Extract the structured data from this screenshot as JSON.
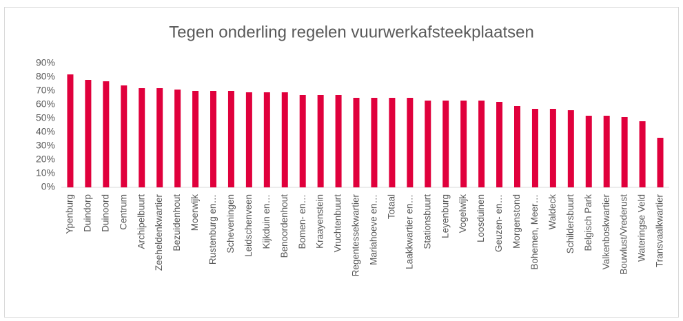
{
  "chart_data": {
    "type": "bar",
    "title": "Tegen onderling regelen vuurwerkafsteekplaatsen",
    "categories": [
      "Ypenburg",
      "Duindorp",
      "Duinoord",
      "Centrum",
      "Archipelbuurt",
      "Zeeheldenkwartier",
      "Bezuidenhout",
      "Moerwijk",
      "Rustenburg en…",
      "Scheveningen",
      "Leidschenveen",
      "Kijkduin en…",
      "Benoordenhout",
      "Bomen- en…",
      "Kraayenstein",
      "Vruchtenbuurt",
      "Regentessekwartier",
      "Mariahoeve en…",
      "Totaal",
      "Laakkwartier en…",
      "Stationsbuurt",
      "Leyenburg",
      "Vogelwijk",
      "Loosduinen",
      "Geuzen- en…",
      "Morgenstond",
      "Bohemen, Meer…",
      "Waldeck",
      "Schildersbuurt",
      "Belgisch Park",
      "Valkenboskwartier",
      "Bouwlust/Vrederust",
      "Wateringse Veld",
      "Transvaalkwartier"
    ],
    "values": [
      82,
      78,
      77,
      74,
      72,
      72,
      71,
      70,
      70,
      70,
      69,
      69,
      69,
      67,
      67,
      67,
      65,
      65,
      65,
      65,
      63,
      63,
      63,
      63,
      62,
      59,
      57,
      57,
      56,
      52,
      52,
      51,
      48,
      36
    ],
    "color": "#e0003c",
    "ylim": [
      0,
      90
    ],
    "yticks": [
      {
        "value": 0,
        "label": "0%"
      },
      {
        "value": 10,
        "label": "10%"
      },
      {
        "value": 20,
        "label": "20%"
      },
      {
        "value": 30,
        "label": "30%"
      },
      {
        "value": 40,
        "label": "40%"
      },
      {
        "value": 50,
        "label": "50%"
      },
      {
        "value": 60,
        "label": "60%"
      },
      {
        "value": 70,
        "label": "70%"
      },
      {
        "value": 80,
        "label": "80%"
      },
      {
        "value": 90,
        "label": "90%"
      }
    ],
    "grid": false
  }
}
